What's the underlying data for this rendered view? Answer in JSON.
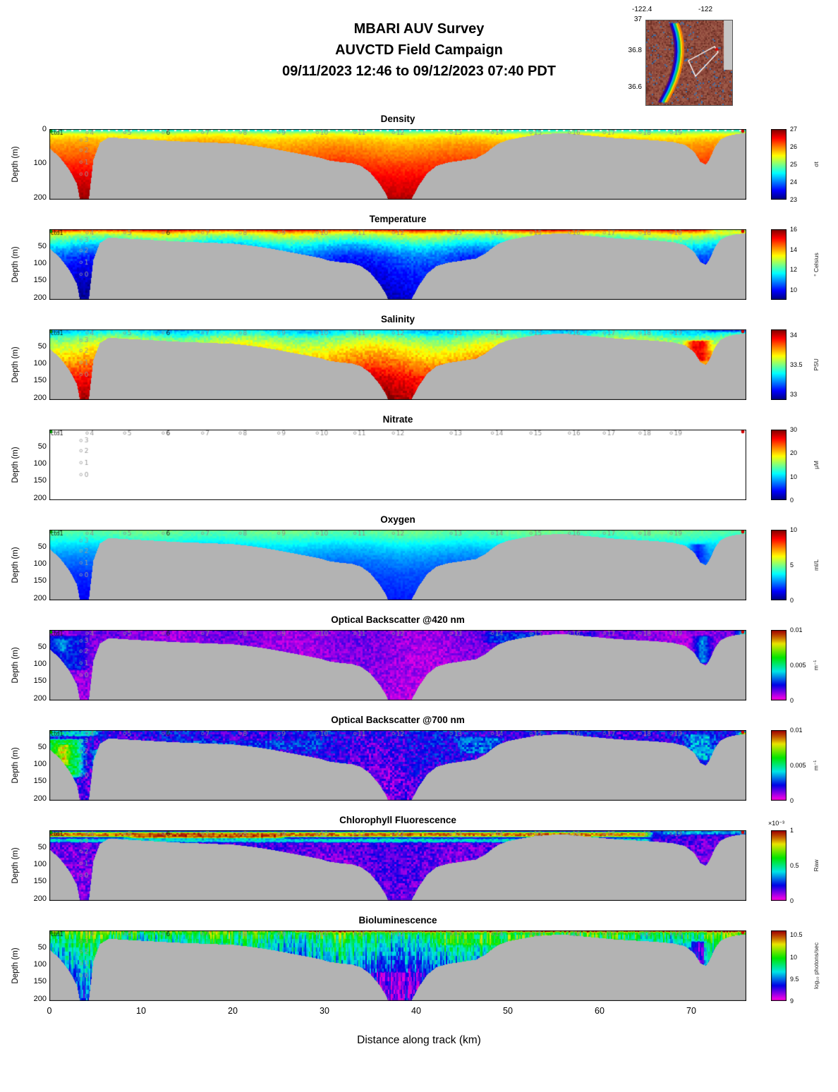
{
  "header": {
    "title_line1": "MBARI AUV Survey",
    "title_line2": "AUVCTD Field Campaign",
    "title_line3": "09/11/2023 12:46  to 09/12/2023 07:40 PDT"
  },
  "map_inset": {
    "x_ticks": [
      "-122.4",
      "-122"
    ],
    "y_ticks": [
      "37",
      "36.8",
      "36.6"
    ],
    "land_color": "#c6c6c6",
    "terrain_color": "#8c463a",
    "track_color": "#ffffff",
    "marker_color": "#e00000"
  },
  "axes": {
    "x_label": "Distance along track (km)",
    "y_label": "Depth (m)",
    "x_ticks": [
      0,
      10,
      20,
      30,
      40,
      50,
      60,
      70
    ],
    "x_range": [
      0,
      76
    ],
    "depth_range": [
      0,
      207
    ]
  },
  "waypoints": {
    "ctd_label": "ctd1",
    "highlight_label": "6",
    "marker_depth": 10,
    "top_row": [
      {
        "label": "4",
        "x": 4.5
      },
      {
        "label": "5",
        "x": 8.6
      },
      {
        "label": "6",
        "x": 12.8
      },
      {
        "label": "7",
        "x": 17.1
      },
      {
        "label": "8",
        "x": 21.2
      },
      {
        "label": "9",
        "x": 25.4
      },
      {
        "label": "10",
        "x": 29.6
      },
      {
        "label": "11",
        "x": 33.7
      },
      {
        "label": "12",
        "x": 37.9
      },
      {
        "label": "13",
        "x": 44.2
      },
      {
        "label": "14",
        "x": 48.7
      },
      {
        "label": "15",
        "x": 52.9
      },
      {
        "label": "16",
        "x": 57.1
      },
      {
        "label": "17",
        "x": 60.9
      },
      {
        "label": "18",
        "x": 64.8
      },
      {
        "label": "19",
        "x": 68.2
      }
    ],
    "cast_column_x": 3.6,
    "cast_column": [
      {
        "label": "3",
        "depth": 32
      },
      {
        "label": "2",
        "depth": 62
      },
      {
        "label": "1",
        "depth": 97
      },
      {
        "label": "0",
        "depth": 132
      }
    ],
    "start_marker_color": "#00a000",
    "end_marker_color": "#d40000"
  },
  "bathymetry": [
    [
      0,
      55
    ],
    [
      1.2,
      85
    ],
    [
      2.2,
      120
    ],
    [
      3.0,
      160
    ],
    [
      3.5,
      230
    ],
    [
      4.2,
      230
    ],
    [
      4.8,
      90
    ],
    [
      5.5,
      40
    ],
    [
      6.5,
      24
    ],
    [
      8,
      27
    ],
    [
      10,
      30
    ],
    [
      12,
      33
    ],
    [
      14,
      36
    ],
    [
      16,
      38
    ],
    [
      18,
      40
    ],
    [
      20,
      42
    ],
    [
      22,
      48
    ],
    [
      24,
      56
    ],
    [
      26,
      66
    ],
    [
      28,
      76
    ],
    [
      29.5,
      84
    ],
    [
      30.5,
      92
    ],
    [
      31.5,
      96
    ],
    [
      33,
      100
    ],
    [
      34,
      108
    ],
    [
      35,
      128
    ],
    [
      36,
      160
    ],
    [
      36.8,
      195
    ],
    [
      37.3,
      240
    ],
    [
      38.8,
      240
    ],
    [
      39.5,
      205
    ],
    [
      40.3,
      165
    ],
    [
      41.2,
      130
    ],
    [
      42.2,
      108
    ],
    [
      43.5,
      98
    ],
    [
      45,
      92
    ],
    [
      46.5,
      86
    ],
    [
      47.5,
      72
    ],
    [
      48.3,
      55
    ],
    [
      49,
      42
    ],
    [
      50,
      32
    ],
    [
      51.5,
      24
    ],
    [
      53,
      17
    ],
    [
      55,
      13
    ],
    [
      56.5,
      13
    ],
    [
      58,
      17
    ],
    [
      60,
      22
    ],
    [
      62,
      27
    ],
    [
      64,
      30
    ],
    [
      66,
      33
    ],
    [
      68,
      38
    ],
    [
      69.3,
      46
    ],
    [
      70.3,
      66
    ],
    [
      71,
      96
    ],
    [
      71.6,
      104
    ],
    [
      72,
      88
    ],
    [
      72.6,
      52
    ],
    [
      73.2,
      30
    ],
    [
      74,
      20
    ],
    [
      75,
      14
    ],
    [
      76,
      12
    ]
  ],
  "chart_data": [
    {
      "type": "heatmap",
      "title": "Density",
      "colormap": "jet",
      "clim": [
        23,
        27
      ],
      "colorbar_ticks": [
        {
          "label": "27",
          "v": 27
        },
        {
          "label": "26",
          "v": 26
        },
        {
          "label": "25",
          "v": 25
        },
        {
          "label": "24",
          "v": 24
        },
        {
          "label": "23",
          "v": 23
        }
      ],
      "unit": "σt",
      "y_ticks": [
        0,
        100,
        200
      ],
      "top_gaps": true,
      "profile": [
        [
          0,
          24.4
        ],
        [
          6,
          24.8
        ],
        [
          15,
          25.4
        ],
        [
          30,
          25.7
        ],
        [
          50,
          25.9
        ],
        [
          80,
          26.1
        ],
        [
          110,
          26.35
        ],
        [
          150,
          26.6
        ],
        [
          207,
          26.85
        ]
      ],
      "noise": 0.08,
      "xvar": 0.06,
      "features": []
    },
    {
      "type": "heatmap",
      "title": "Temperature",
      "colormap": "jet",
      "clim": [
        9,
        16
      ],
      "colorbar_ticks": [
        {
          "label": "16",
          "v": 16
        },
        {
          "label": "14",
          "v": 14
        },
        {
          "label": "12",
          "v": 12
        },
        {
          "label": "10",
          "v": 10
        }
      ],
      "unit": "° Celsius",
      "y_ticks": [
        50,
        100,
        150,
        200
      ],
      "profile": [
        [
          0,
          15.6
        ],
        [
          6,
          14.2
        ],
        [
          15,
          13.0
        ],
        [
          30,
          12.2
        ],
        [
          50,
          11.3
        ],
        [
          80,
          10.4
        ],
        [
          120,
          9.9
        ],
        [
          207,
          9.3
        ]
      ],
      "noise": 0.25,
      "xvar": 0.3,
      "features": [
        {
          "x0": 0,
          "x1": 76,
          "d0": 0,
          "d1": 3.5,
          "v": 16.0
        },
        {
          "x0": 71.5,
          "x1": 76,
          "d0": 0,
          "d1": 12,
          "v": 13.0
        }
      ]
    },
    {
      "type": "heatmap",
      "title": "Salinity",
      "colormap": "jet",
      "clim": [
        32.9,
        34.1
      ],
      "colorbar_ticks": [
        {
          "label": "34",
          "v": 34
        },
        {
          "label": "33.5",
          "v": 33.5
        },
        {
          "label": "33",
          "v": 33
        }
      ],
      "unit": "PSU",
      "y_ticks": [
        50,
        100,
        150,
        200
      ],
      "profile": [
        [
          0,
          33.3
        ],
        [
          10,
          33.35
        ],
        [
          25,
          33.5
        ],
        [
          45,
          33.6
        ],
        [
          70,
          33.7
        ],
        [
          100,
          33.8
        ],
        [
          140,
          33.95
        ],
        [
          207,
          34.05
        ]
      ],
      "noise": 0.05,
      "xvar": 0.05,
      "features": [
        {
          "x0": 69,
          "x1": 72.5,
          "d0": 30,
          "d1": 95,
          "v": 33.95
        },
        {
          "x0": 71,
          "x1": 76,
          "d0": 0,
          "d1": 10,
          "v": 33.15
        }
      ]
    },
    {
      "type": "heatmap",
      "title": "Nitrate",
      "colormap": "jet",
      "clim": [
        0,
        30
      ],
      "no_data": true,
      "colorbar_ticks": [
        {
          "label": "30",
          "v": 30
        },
        {
          "label": "20",
          "v": 20
        },
        {
          "label": "10",
          "v": 10
        },
        {
          "label": "0",
          "v": 0
        }
      ],
      "unit": "μM",
      "y_ticks": [
        50,
        100,
        150,
        200
      ],
      "profile": [
        [
          0,
          0
        ],
        [
          207,
          0
        ]
      ],
      "noise": 0,
      "xvar": 0,
      "features": []
    },
    {
      "type": "heatmap",
      "title": "Oxygen",
      "colormap": "jet",
      "clim": [
        0,
        10
      ],
      "colorbar_ticks": [
        {
          "label": "10",
          "v": 10
        },
        {
          "label": "5",
          "v": 5
        },
        {
          "label": "0",
          "v": 0
        }
      ],
      "unit": "ml/L",
      "y_ticks": [
        50,
        100,
        150,
        200
      ],
      "profile": [
        [
          0,
          4.9
        ],
        [
          20,
          4.4
        ],
        [
          40,
          3.7
        ],
        [
          60,
          3.1
        ],
        [
          90,
          2.5
        ],
        [
          130,
          1.9
        ],
        [
          207,
          1.3
        ]
      ],
      "noise": 0.18,
      "xvar": 0.15,
      "features": [
        {
          "x0": 0,
          "x1": 76,
          "d0": 0,
          "d1": 3,
          "v": 5.5
        },
        {
          "x0": 69.5,
          "x1": 72,
          "d0": 40,
          "d1": 100,
          "v": 1.5
        }
      ]
    },
    {
      "type": "heatmap",
      "title": "Optical Backscatter @420 nm",
      "colormap": "rainbow",
      "clim": [
        0,
        0.01
      ],
      "colorbar_ticks": [
        {
          "label": "0.01",
          "v": 0.01
        },
        {
          "label": "0.005",
          "v": 0.005
        },
        {
          "label": "0",
          "v": 0
        }
      ],
      "unit": "m⁻¹",
      "y_ticks": [
        50,
        100,
        150,
        200
      ],
      "profile": [
        [
          0,
          0.0011
        ],
        [
          207,
          0.0008
        ]
      ],
      "noise": 0.0005,
      "xvar": 0.0002,
      "features": [
        {
          "x0": 0,
          "x1": 4.5,
          "d0": 15,
          "d1": 120,
          "v": 0.0024
        },
        {
          "x0": 0.3,
          "x1": 2.5,
          "d0": 25,
          "d1": 65,
          "v": 0.0036
        },
        {
          "x0": 47,
          "x1": 54,
          "d0": 4,
          "d1": 40,
          "v": 0.0026
        },
        {
          "x0": 56,
          "x1": 60,
          "d0": 4,
          "d1": 28,
          "v": 0.002
        },
        {
          "x0": 70,
          "x1": 72.5,
          "d0": 15,
          "d1": 100,
          "v": 0.0034
        },
        {
          "x0": 74.5,
          "x1": 76,
          "d0": 0,
          "d1": 30,
          "v": 0.0042
        },
        {
          "x0": 0,
          "x1": 76,
          "d0": 0,
          "d1": 3,
          "v": 0.0018
        }
      ]
    },
    {
      "type": "heatmap",
      "title": "Optical Backscatter @700 nm",
      "colormap": "rainbow",
      "clim": [
        0,
        0.01
      ],
      "colorbar_ticks": [
        {
          "label": "0.01",
          "v": 0.01
        },
        {
          "label": "0.005",
          "v": 0.005
        },
        {
          "label": "0",
          "v": 0
        }
      ],
      "unit": "m⁻¹",
      "y_ticks": [
        50,
        100,
        150,
        200
      ],
      "profile": [
        [
          0,
          0.002
        ],
        [
          207,
          0.0013
        ]
      ],
      "noise": 0.0009,
      "xvar": 0.0003,
      "features": [
        {
          "x0": 0,
          "x1": 4.2,
          "d0": 25,
          "d1": 140,
          "v": 0.0055
        },
        {
          "x0": 0.4,
          "x1": 2.6,
          "d0": 40,
          "d1": 105,
          "v": 0.0085
        },
        {
          "x0": 4.3,
          "x1": 6.2,
          "d0": 55,
          "d1": 115,
          "v": 0.005
        },
        {
          "x0": 0,
          "x1": 6,
          "d0": 0,
          "d1": 20,
          "v": 0.0042
        },
        {
          "x0": 0,
          "x1": 76,
          "d0": 0,
          "d1": 5,
          "v": 0.0028
        },
        {
          "x0": 14,
          "x1": 30,
          "d0": 28,
          "d1": 60,
          "v": 0.0026
        },
        {
          "x0": 44,
          "x1": 50,
          "d0": 18,
          "d1": 70,
          "v": 0.003
        },
        {
          "x0": 69,
          "x1": 73,
          "d0": 10,
          "d1": 90,
          "v": 0.0036
        },
        {
          "x0": 74.8,
          "x1": 76,
          "d0": 4,
          "d1": 26,
          "v": 0.009
        }
      ]
    },
    {
      "type": "heatmap",
      "title": "Chlorophyll Fluorescence",
      "colormap": "rainbow",
      "clim": [
        0,
        0.001
      ],
      "colorbar_ticks": [
        {
          "label": "1",
          "v": 0.001
        },
        {
          "label": "0.5",
          "v": 0.0005
        },
        {
          "label": "0",
          "v": 0
        }
      ],
      "unit": "Raw",
      "multiplier": "×10⁻³",
      "y_ticks": [
        50,
        100,
        150,
        200
      ],
      "profile": [
        [
          0,
          0.0002
        ],
        [
          30,
          0.00015
        ],
        [
          207,
          0.00012
        ]
      ],
      "noise": 7e-05,
      "xvar": 2e-05,
      "features": [
        {
          "x0": 0,
          "x1": 66,
          "d0": 3,
          "d1": 22,
          "v": 0.00088
        },
        {
          "x0": 8,
          "x1": 26,
          "d0": 6,
          "d1": 26,
          "v": 0.00092
        },
        {
          "x0": 0,
          "x1": 66,
          "d0": 22,
          "d1": 38,
          "v": 0.00042
        },
        {
          "x0": 66,
          "x1": 76,
          "d0": 0,
          "d1": 15,
          "v": 0.00035
        }
      ]
    },
    {
      "type": "heatmap",
      "title": "Bioluminescence",
      "colormap": "rainbow",
      "clim": [
        9,
        10.6
      ],
      "colorbar_ticks": [
        {
          "label": "10.5",
          "v": 10.5
        },
        {
          "label": "10",
          "v": 10
        },
        {
          "label": "9.5",
          "v": 9.5
        },
        {
          "label": "9",
          "v": 9
        }
      ],
      "unit": "log₁₀ photons/sec",
      "y_ticks": [
        50,
        100,
        150,
        200
      ],
      "streaky": true,
      "profile": [
        [
          0,
          10.05
        ],
        [
          15,
          9.9
        ],
        [
          40,
          9.75
        ],
        [
          80,
          9.6
        ],
        [
          120,
          9.45
        ],
        [
          207,
          9.3
        ]
      ],
      "noise": 0.3,
      "xvar": 0.1,
      "features": [
        {
          "x0": 26,
          "x1": 76,
          "d0": 0,
          "d1": 7,
          "v": 10.55
        },
        {
          "x0": 0,
          "x1": 26,
          "d0": 0,
          "d1": 7,
          "v": 10.15
        },
        {
          "x0": 42,
          "x1": 56,
          "d0": 10,
          "d1": 45,
          "v": 10.0
        },
        {
          "x0": 35,
          "x1": 41,
          "d0": 120,
          "d1": 207,
          "v": 9.2
        },
        {
          "x0": 69.5,
          "x1": 72,
          "d0": 30,
          "d1": 100,
          "v": 9.25
        }
      ]
    }
  ]
}
